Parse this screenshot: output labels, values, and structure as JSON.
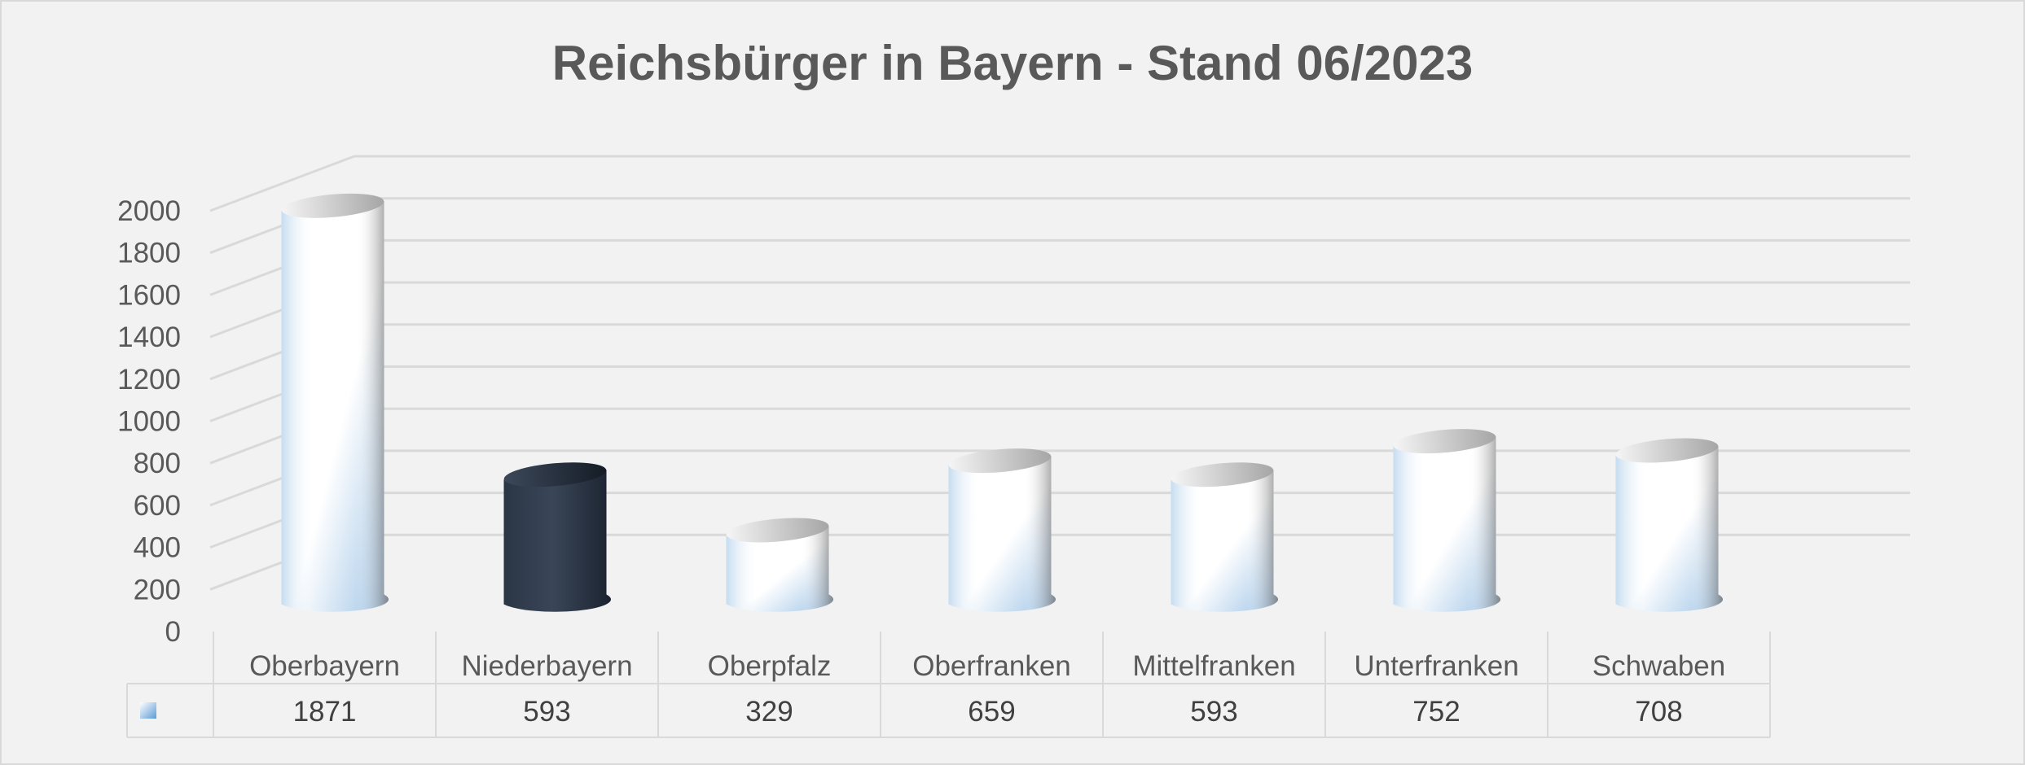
{
  "chart_data": {
    "type": "bar",
    "style": "3d-cylinder",
    "title": "Reichsbürger in Bayern  - Stand 06/2023",
    "categories": [
      "Oberbayern",
      "Niederbayern",
      "Oberpfalz",
      "Oberfranken",
      "Mittelfranken",
      "Unterfranken",
      "Schwaben"
    ],
    "series": [
      {
        "values": [
          1871,
          593,
          329,
          659,
          593,
          752,
          708
        ]
      }
    ],
    "highlighted_category": "Niederbayern",
    "y_ticks": [
      "0",
      "200",
      "400",
      "600",
      "800",
      "1000",
      "1200",
      "1400",
      "1600",
      "1800",
      "2000"
    ],
    "ylim": [
      0,
      2000
    ],
    "grid": true,
    "data_table": true,
    "legend": "none",
    "colors": {
      "bar_light": "#ffffff",
      "bar_blue": "#9dc3e6",
      "bar_dark": "#2e3a4a",
      "grid": "#d9d9d9",
      "text": "#595959",
      "background": "#f2f2f2"
    }
  }
}
